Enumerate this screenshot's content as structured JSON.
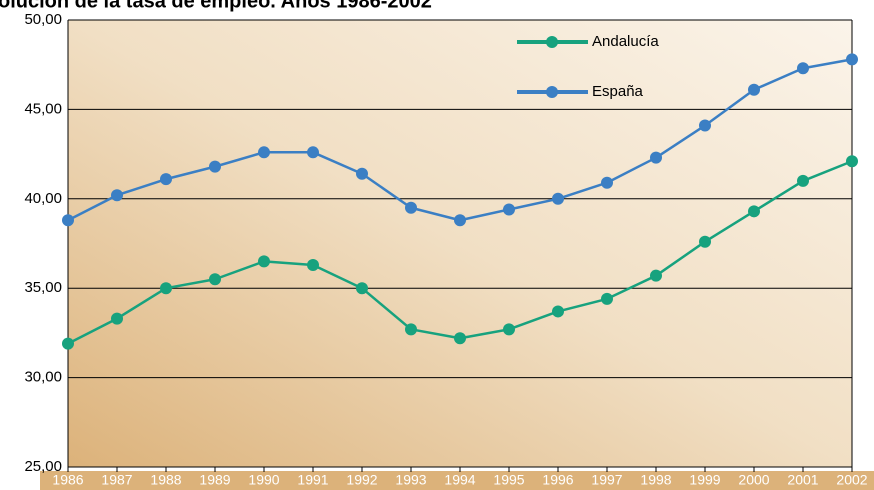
{
  "chart_data": {
    "type": "line",
    "title": "olución de la tasa de empleo. Años 1986-2002",
    "categories": [
      "1986",
      "1987",
      "1988",
      "1989",
      "1990",
      "1991",
      "1992",
      "1993",
      "1994",
      "1995",
      "1996",
      "1997",
      "1998",
      "1999",
      "2000",
      "2001",
      "2002"
    ],
    "series": [
      {
        "name": "Andalucía",
        "color": "#17a27e",
        "values": [
          31.9,
          33.3,
          35.0,
          35.5,
          36.5,
          36.3,
          35.0,
          32.7,
          32.2,
          32.7,
          33.7,
          34.4,
          35.7,
          37.6,
          39.3,
          41.0,
          42.1
        ]
      },
      {
        "name": "España",
        "color": "#3b7fc4",
        "values": [
          38.8,
          40.2,
          41.1,
          41.8,
          42.6,
          42.6,
          41.4,
          39.5,
          38.8,
          39.4,
          40.0,
          40.9,
          42.3,
          44.1,
          46.1,
          47.3,
          47.8
        ]
      }
    ],
    "ylim": [
      25,
      50
    ],
    "yticks": [
      {
        "value": 25,
        "label": "25,00"
      },
      {
        "value": 30,
        "label": "30,00"
      },
      {
        "value": 35,
        "label": "35,00"
      },
      {
        "value": 40,
        "label": "40,00"
      },
      {
        "value": 45,
        "label": "45,00"
      },
      {
        "value": 50,
        "label": "50,00"
      }
    ],
    "grid": true
  }
}
